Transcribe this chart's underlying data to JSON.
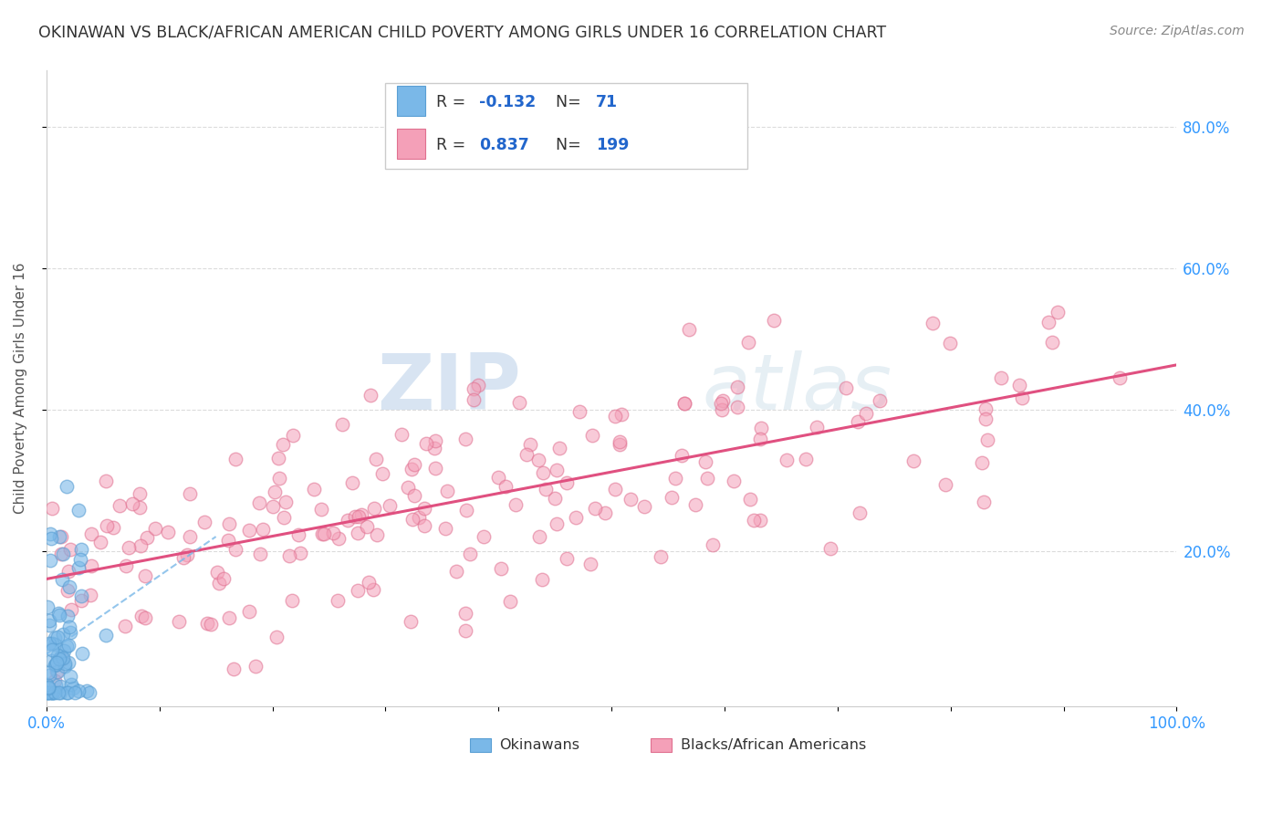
{
  "title": "OKINAWAN VS BLACK/AFRICAN AMERICAN CHILD POVERTY AMONG GIRLS UNDER 16 CORRELATION CHART",
  "source": "Source: ZipAtlas.com",
  "ylabel": "Child Poverty Among Girls Under 16",
  "xlim": [
    0,
    1
  ],
  "ylim": [
    -0.02,
    0.88
  ],
  "ytick_vals": [
    0.2,
    0.4,
    0.6,
    0.8
  ],
  "okinawan_color": "#7ab8e8",
  "okinawan_edge": "#5a9fd4",
  "black_color": "#f4a0b8",
  "black_edge": "#e07090",
  "trend_blue_color": "#7ab8e8",
  "trend_pink_color": "#e05080",
  "R_okinawan": -0.132,
  "N_okinawan": 71,
  "R_black": 0.837,
  "N_black": 199,
  "legend_labels": [
    "Okinawans",
    "Blacks/African Americans"
  ],
  "watermark_zip": "ZIP",
  "watermark_atlas": "atlas",
  "background_color": "#ffffff",
  "grid_color": "#cccccc",
  "title_color": "#333333",
  "tick_color": "#3399ff",
  "source_color": "#888888",
  "ok_seed": 77,
  "blk_seed": 55
}
